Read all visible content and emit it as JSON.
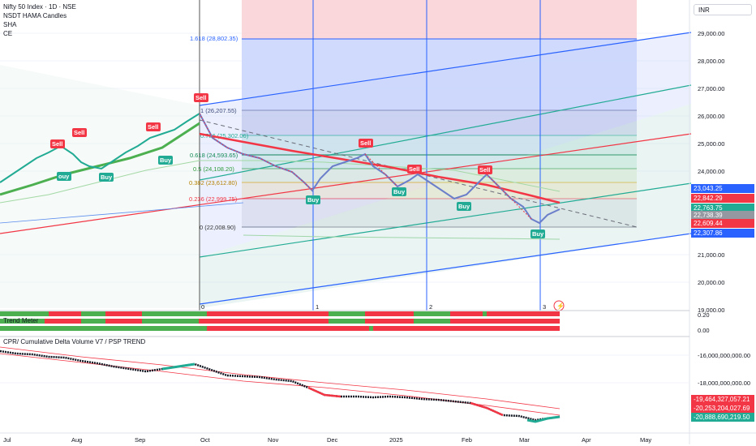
{
  "header": {
    "title": "Nifty 50 Index · 1D · NSE",
    "indicators": [
      "NSDT HAMA Candles",
      "SHA",
      "CE"
    ],
    "currency": "INR"
  },
  "price_axis": {
    "ticks": [
      "29,000.00",
      "28,000.00",
      "27,000.00",
      "26,000.00",
      "25,000.00",
      "24,000.00",
      "21,000.00",
      "20,000.00",
      "19,000.00"
    ]
  },
  "price_tags": [
    {
      "label": "23,043.25",
      "color": "#2962ff"
    },
    {
      "label": "22,842.29",
      "color": "#f23645"
    },
    {
      "label": "22,763.75",
      "color": "#22ab94"
    },
    {
      "label": "22,738.39",
      "color": "#9598a1"
    },
    {
      "label": "22,609.44",
      "color": "#f23645"
    },
    {
      "label": "22,307.86",
      "color": "#2962ff"
    }
  ],
  "fib_levels": [
    {
      "label": "1.618 (28,802.35)"
    },
    {
      "label": "1 (26,207.55)"
    },
    {
      "label": "0.786 (25,302.06)"
    },
    {
      "label": "0.618 (24,593.65)"
    },
    {
      "label": "0.5 (24,108.20)"
    },
    {
      "label": "0.382 (23,612.80)"
    },
    {
      "label": "0.236 (22,999.75)"
    },
    {
      "label": "0 (22,008.90)"
    }
  ],
  "signals": {
    "sell": [
      "Sell",
      "Sell",
      "Sell",
      "Sell",
      "Sell",
      "Sell",
      "Sell"
    ],
    "buy": [
      "ouy",
      "Buy",
      "Buy",
      "Buy",
      "Buy",
      "Buy",
      "Buy"
    ]
  },
  "time_markers": [
    "0",
    "1",
    "2",
    "3"
  ],
  "trend_meter": {
    "title": "Trend Meter",
    "ticks": [
      "0.20",
      "0.00"
    ]
  },
  "cdv": {
    "title": "CPR/ Cumulative Delta Volume V7 / PSP TREND",
    "ticks": [
      "-16,000,000,000.00",
      "-18,000,000,000.00"
    ],
    "tags": [
      {
        "label": "-19,464,327,057.21",
        "color": "#f23645"
      },
      {
        "label": "-20,253,204,027.69",
        "color": "#f23645"
      },
      {
        "label": "-20,888,690,219.50",
        "color": "#22ab94"
      }
    ]
  },
  "time_axis": [
    "Jul",
    "Aug",
    "Sep",
    "Oct",
    "Nov",
    "Dec",
    "2025",
    "Feb",
    "Mar",
    "Apr",
    "May"
  ],
  "colors": {
    "up": "#22ab94",
    "down": "#f23645",
    "fib_blue": "#2962ff"
  }
}
